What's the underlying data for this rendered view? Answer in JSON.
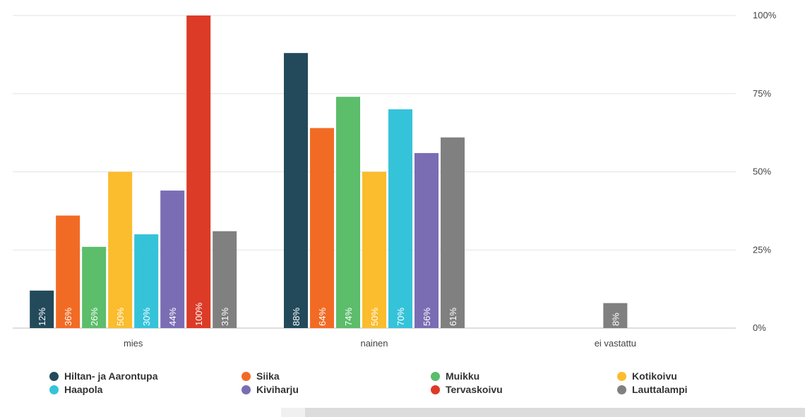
{
  "chart_data": {
    "type": "bar",
    "categories": [
      "mies",
      "nainen",
      "ei vastattu"
    ],
    "y_ticks": [
      "0%",
      "25%",
      "50%",
      "75%",
      "100%"
    ],
    "ylim": [
      0,
      100
    ],
    "grid": true,
    "legend_position": "bottom",
    "series": [
      {
        "name": "Hiltan- ja Aarontupa",
        "color": "#224a5b",
        "values": [
          12,
          88,
          null
        ],
        "labels": [
          "12%",
          "88%",
          null
        ]
      },
      {
        "name": "Siika",
        "color": "#f26b24",
        "values": [
          36,
          64,
          null
        ],
        "labels": [
          "36%",
          "64%",
          null
        ]
      },
      {
        "name": "Muikku",
        "color": "#5cbd6b",
        "values": [
          26,
          74,
          null
        ],
        "labels": [
          "26%",
          "74%",
          null
        ]
      },
      {
        "name": "Kotikoivu",
        "color": "#fbbc2d",
        "values": [
          50,
          50,
          null
        ],
        "labels": [
          "50%",
          "50%",
          null
        ]
      },
      {
        "name": "Haapola",
        "color": "#35c3d9",
        "values": [
          30,
          70,
          null
        ],
        "labels": [
          "30%",
          "70%",
          null
        ]
      },
      {
        "name": "Kiviharju",
        "color": "#7a6db4",
        "values": [
          44,
          56,
          null
        ],
        "labels": [
          "44%",
          "56%",
          null
        ]
      },
      {
        "name": "Tervaskoivu",
        "color": "#dc3b27",
        "values": [
          100,
          null,
          null
        ],
        "labels": [
          "100%",
          null,
          null
        ]
      },
      {
        "name": "Lauttalampi",
        "color": "#808080",
        "values": [
          31,
          61,
          8
        ],
        "labels": [
          "31%",
          "61%",
          "8%"
        ]
      }
    ]
  }
}
